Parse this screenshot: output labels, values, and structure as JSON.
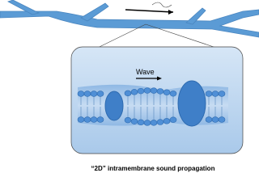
{
  "labels": {
    "wave": "Wave"
  },
  "caption": "“2D” intramembrane sound propagation"
}
